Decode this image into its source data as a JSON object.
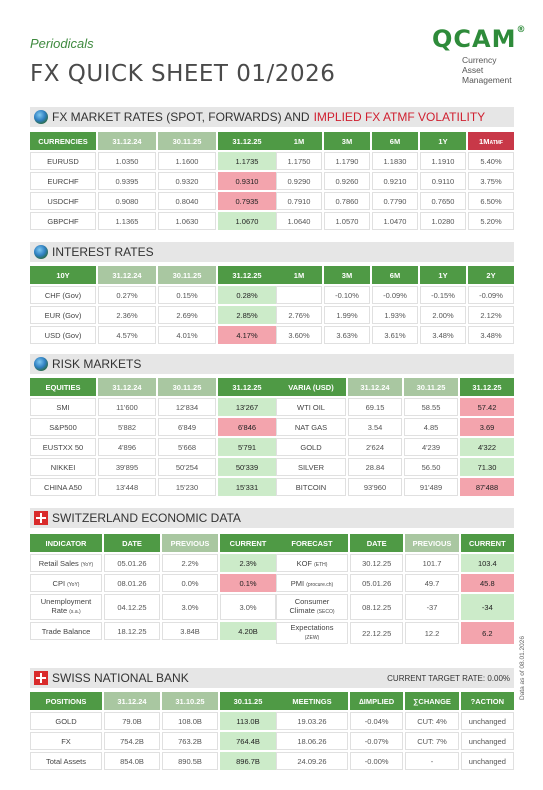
{
  "header": {
    "subtitle": "Periodicals",
    "title": "FX QUICK SHEET 01/2026"
  },
  "logo": {
    "mark": "QCAM",
    "reg": "®",
    "line1": "Currency",
    "line2": "Asset",
    "line3": "Management"
  },
  "fx": {
    "title": "FX MARKET RATES (SPOT, FORWARDS) AND",
    "title_highlight": "IMPLIED FX ATMF VOLATILITY",
    "left_headers": [
      "CURRENCIES",
      "31.12.24",
      "30.11.25",
      "31.12.25"
    ],
    "right_headers": [
      "1M",
      "3M",
      "6M",
      "1Y"
    ],
    "vol_header": "1M",
    "vol_header_sub": "ATMF",
    "rows": [
      {
        "name": "EURUSD",
        "v1": "1.0350",
        "v2": "1.1600",
        "v3": "1.1735",
        "f1": "1.1750",
        "f2": "1.1790",
        "f3": "1.1830",
        "f4": "1.1910",
        "vol": "5.40%"
      },
      {
        "name": "EURCHF",
        "v1": "0.9395",
        "v2": "0.9320",
        "v3": "0.9310",
        "f1": "0.9290",
        "f2": "0.9260",
        "f3": "0.9210",
        "f4": "0.9110",
        "vol": "3.75%"
      },
      {
        "name": "USDCHF",
        "v1": "0.9080",
        "v2": "0.8040",
        "v3": "0.7935",
        "f1": "0.7910",
        "f2": "0.7860",
        "f3": "0.7790",
        "f4": "0.7650",
        "vol": "6.50%"
      },
      {
        "name": "GBPCHF",
        "v1": "1.1365",
        "v2": "1.0630",
        "v3": "1.0670",
        "f1": "1.0640",
        "f2": "1.0570",
        "f3": "1.0470",
        "f4": "1.0280",
        "vol": "5.20%"
      }
    ]
  },
  "ir": {
    "title": "INTEREST RATES",
    "left_headers": [
      "10Y",
      "31.12.24",
      "30.11.25",
      "31.12.25"
    ],
    "right_headers": [
      "1M",
      "3M",
      "6M",
      "1Y",
      "2Y"
    ],
    "rows": [
      {
        "name": "CHF (Gov)",
        "v1": "0.27%",
        "v2": "0.15%",
        "v3": "0.28%",
        "r1": "",
        "r2": "-0.10%",
        "r3": "-0.09%",
        "r4": "-0.15%",
        "r5": "-0.09%"
      },
      {
        "name": "EUR (Gov)",
        "v1": "2.36%",
        "v2": "2.69%",
        "v3": "2.85%",
        "r1": "2.76%",
        "r2": "1.99%",
        "r3": "1.93%",
        "r4": "2.00%",
        "r5": "2.12%"
      },
      {
        "name": "USD (Gov)",
        "v1": "4.57%",
        "v2": "4.01%",
        "v3": "4.17%",
        "r1": "3.60%",
        "r2": "3.63%",
        "r3": "3.61%",
        "r4": "3.48%",
        "r5": "3.48%"
      }
    ]
  },
  "risk": {
    "title": "RISK MARKETS",
    "left_headers": [
      "EQUITIES",
      "31.12.24",
      "30.11.25",
      "31.12.25"
    ],
    "right_headers": [
      "VARIA (USD)",
      "31.12.24",
      "30.11.25",
      "31.12.25"
    ],
    "equities": [
      {
        "name": "SMI",
        "v1": "11'600",
        "v2": "12'834",
        "v3": "13'267"
      },
      {
        "name": "S&P500",
        "v1": "5'882",
        "v2": "6'849",
        "v3": "6'846"
      },
      {
        "name": "EUSTXX 50",
        "v1": "4'896",
        "v2": "5'668",
        "v3": "5'791"
      },
      {
        "name": "NIKKEI",
        "v1": "39'895",
        "v2": "50'254",
        "v3": "50'339"
      },
      {
        "name": "CHINA A50",
        "v1": "13'448",
        "v2": "15'230",
        "v3": "15'331"
      }
    ],
    "varia": [
      {
        "name": "WTI OIL",
        "v1": "69.15",
        "v2": "58.55",
        "v3": "57.42"
      },
      {
        "name": "NAT GAS",
        "v1": "3.54",
        "v2": "4.85",
        "v3": "3.69"
      },
      {
        "name": "GOLD",
        "v1": "2'624",
        "v2": "4'239",
        "v3": "4'322"
      },
      {
        "name": "SILVER",
        "v1": "28.84",
        "v2": "56.50",
        "v3": "71.30"
      },
      {
        "name": "BITCOIN",
        "v1": "93'960",
        "v2": "91'489",
        "v3": "87'488"
      }
    ]
  },
  "swiss": {
    "title": "SWITZERLAND ECONOMIC DATA",
    "left_headers": [
      "INDICATOR",
      "DATE",
      "PREVIOUS",
      "CURRENT"
    ],
    "right_headers": [
      "FORECAST",
      "DATE",
      "PREVIOUS",
      "CURRENT"
    ],
    "indicators": [
      {
        "name": "Retail Sales",
        "sub": "(YoY)",
        "date": "05.01.26",
        "prev": "2.2%",
        "cur": "2.3%"
      },
      {
        "name": "CPI",
        "sub": "(YoY)",
        "date": "08.01.26",
        "prev": "0.0%",
        "cur": "0.1%"
      },
      {
        "name": "Unemployment",
        "name2": "Rate",
        "sub": "(s.a.)",
        "date": "04.12.25",
        "prev": "3.0%",
        "cur": "3.0%"
      },
      {
        "name": "Trade Balance",
        "sub": "",
        "date": "18.12.25",
        "prev": "3.84B",
        "cur": "4.20B"
      }
    ],
    "forecasts": [
      {
        "name": "KOF",
        "sub": "(ETH)",
        "date": "30.12.25",
        "prev": "101.7",
        "cur": "103.4"
      },
      {
        "name": "PMI",
        "sub": "(procure.ch)",
        "date": "05.01.26",
        "prev": "49.7",
        "cur": "45.8"
      },
      {
        "name": "Consumer",
        "name2": "Climate",
        "sub": "(SECO)",
        "date": "08.12.25",
        "prev": "-37",
        "cur": "-34"
      },
      {
        "name": "Expectations",
        "sub": "(ZEW)",
        "date": "22.12.25",
        "prev": "12.2",
        "cur": "6.2"
      }
    ]
  },
  "snb": {
    "title": "SWISS NATIONAL BANK",
    "target_rate": "CURRENT TARGET RATE: 0.00%",
    "left_headers": [
      "POSITIONS",
      "31.12.24",
      "31.10.25",
      "30.11.25"
    ],
    "right_headers": [
      "MEETINGS",
      "∆IMPLIED",
      "∑CHANGE",
      "?ACTION"
    ],
    "positions": [
      {
        "name": "GOLD",
        "v1": "79.0B",
        "v2": "108.0B",
        "v3": "113.0B"
      },
      {
        "name": "FX",
        "v1": "754.2B",
        "v2": "763.2B",
        "v3": "764.4B"
      },
      {
        "name": "Total Assets",
        "v1": "854.0B",
        "v2": "890.5B",
        "v3": "896.7B"
      }
    ],
    "meetings": [
      {
        "date": "19.03.26",
        "implied": "-0.04%",
        "change": "CUT: 4%",
        "action": "unchanged"
      },
      {
        "date": "18.06.26",
        "implied": "-0.07%",
        "change": "CUT: 7%",
        "action": "unchanged"
      },
      {
        "date": "24.09.26",
        "implied": "-0.00%",
        "change": "-",
        "action": "unchanged"
      }
    ]
  },
  "footer": {
    "date_note": "Data as of 08.01.2026"
  },
  "colors": {
    "header_green": "#4f9a45",
    "header_light": "#a9c7a1",
    "up_green": "#ccebc9",
    "down_pink": "#f3a4ad",
    "vol_red": "#c83848"
  }
}
